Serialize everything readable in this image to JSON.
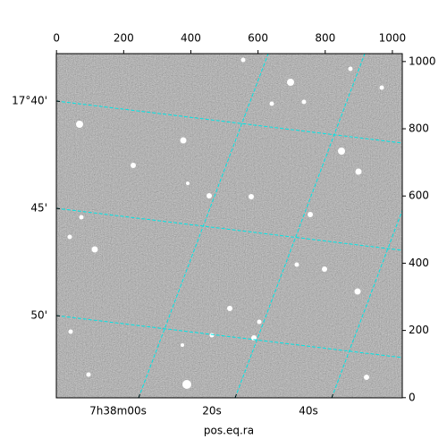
{
  "chart_data": {
    "type": "image",
    "xlabel": "pos.eq.ra",
    "xlim": [
      -0.5,
      1029.5
    ],
    "ylim": [
      -0.5,
      1023.5
    ],
    "xticks": [
      0,
      200,
      400,
      600,
      800,
      1000
    ],
    "yticks": [
      0,
      200,
      400,
      600,
      800,
      1000
    ],
    "ra_ticks": [
      {
        "value": 0,
        "label": "7h38m00s"
      },
      {
        "value": 20,
        "label": "20s"
      },
      {
        "value": 40,
        "label": "40s"
      }
    ],
    "dec_ticks": [
      {
        "value": 40,
        "label": "17°40'"
      },
      {
        "value": 45,
        "label": "45'"
      },
      {
        "value": 50,
        "label": "50'"
      }
    ],
    "grid": true,
    "grid_color": "#00e5e5"
  }
}
